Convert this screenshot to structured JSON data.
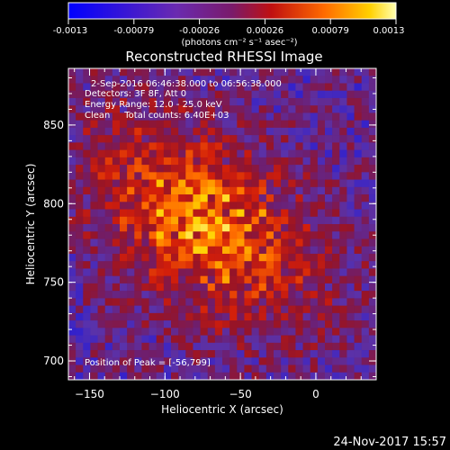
{
  "colorbar": {
    "ticks": [
      "-0.0013",
      "-0.00079",
      "-0.00026",
      "0.00026",
      "0.00079",
      "0.0013"
    ],
    "units": "(photons cm⁻² s⁻¹ asec⁻²)",
    "range": [
      -0.0013,
      0.0013
    ]
  },
  "chart_data": {
    "type": "heatmap",
    "title": "Reconstructed RHESSI Image",
    "xlabel": "Heliocentric X (arcsec)",
    "ylabel": "Heliocentric Y (arcsec)",
    "x_ticks": [
      "−150",
      "−100",
      "−50",
      "0"
    ],
    "y_ticks": [
      "850",
      "800",
      "750",
      "700"
    ],
    "xlim": [
      -164,
      40
    ],
    "ylim": [
      688,
      886
    ],
    "annotations": [
      "2-Sep-2016 06:46:38.000 to 06:56:38.000",
      "Detectors: 3F 8F, Att 0",
      "Energy Range: 12.0 - 25.0 keV",
      "Clean     Total counts: 6.40E+03"
    ],
    "peak_label": "Position of Peak = [-56,799]",
    "peak": [
      -56,
      799
    ],
    "grid": false
  },
  "footer": {
    "date": "24-Nov-2017 15:57"
  },
  "colors": {
    "background": "#000000",
    "text": "#ffffff",
    "colormap": [
      "#0000ff",
      "#5a2aa0",
      "#7a1a6a",
      "#c01010",
      "#ff6a00",
      "#ffd000",
      "#ffffa0"
    ]
  }
}
